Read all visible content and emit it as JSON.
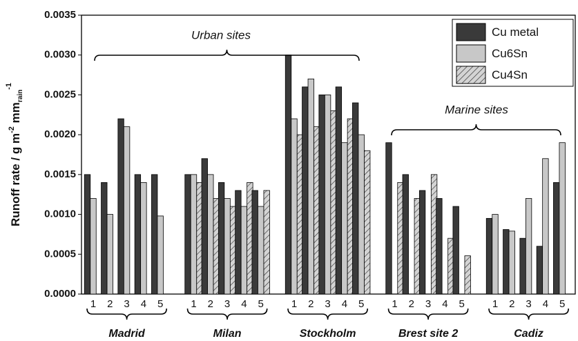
{
  "chart_data": {
    "type": "bar",
    "y_label": [
      "Runoff rate / g m",
      "-2",
      " mm",
      "rain",
      "-1"
    ],
    "groups": [
      {
        "name": "Madrid",
        "categories": [
          "1",
          "2",
          "3",
          "4",
          "5"
        ]
      },
      {
        "name": "Milan",
        "categories": [
          "1",
          "2",
          "3",
          "4",
          "5"
        ]
      },
      {
        "name": "Stockholm",
        "categories": [
          "1",
          "2",
          "3",
          "4",
          "5"
        ]
      },
      {
        "name": "Brest site 2",
        "categories": [
          "1",
          "2",
          "3",
          "4",
          "5"
        ]
      },
      {
        "name": "Cadiz",
        "categories": [
          "1",
          "2",
          "3",
          "4",
          "5"
        ]
      }
    ],
    "series": [
      {
        "name": "Cu metal",
        "color": "#3a3a3a",
        "hatch": false,
        "values": [
          0.0015,
          0.0014,
          0.0022,
          0.0015,
          0.0015,
          0.0015,
          0.0017,
          0.0014,
          0.0013,
          0.0013,
          0.003,
          0.0026,
          0.0025,
          0.0026,
          0.0024,
          0.0019,
          0.0015,
          0.0013,
          0.0012,
          0.0011,
          0.00095,
          0.00081,
          0.0007,
          0.0006,
          0.0014
        ]
      },
      {
        "name": "Cu6Sn",
        "color": "#c8c8c8",
        "hatch": false,
        "values": [
          0.0012,
          0.001,
          0.0021,
          0.0014,
          0.00098,
          0.0015,
          0.0015,
          0.0012,
          0.0011,
          0.0011,
          0.0022,
          0.0027,
          0.0025,
          0.0019,
          0.002,
          null,
          null,
          null,
          null,
          null,
          0.001,
          0.00079,
          0.0012,
          0.0017,
          0.0019
        ]
      },
      {
        "name": "Cu4Sn",
        "color": "#d4d4d4",
        "hatch": true,
        "values": [
          null,
          null,
          null,
          null,
          null,
          0.0014,
          0.0012,
          0.0011,
          0.0014,
          0.0013,
          0.002,
          0.0021,
          0.0023,
          0.0022,
          0.0018,
          0.0014,
          0.0012,
          0.0015,
          0.0007,
          0.00048,
          null,
          null,
          null,
          null,
          null
        ]
      }
    ],
    "annotations": [
      "Urban sites",
      "Marine sites"
    ],
    "ylim": [
      0,
      0.0035
    ],
    "yticks": [
      {
        "value": 0,
        "label": "0.0000"
      },
      0.0005,
      {
        "value": 0.001,
        "label": "0.0010"
      },
      0.0015,
      {
        "value": 0.002,
        "label": "0.0020"
      },
      0.0025,
      {
        "value": 0.003,
        "label": "0.0030"
      },
      0.0035
    ],
    "legend": "top-right"
  }
}
